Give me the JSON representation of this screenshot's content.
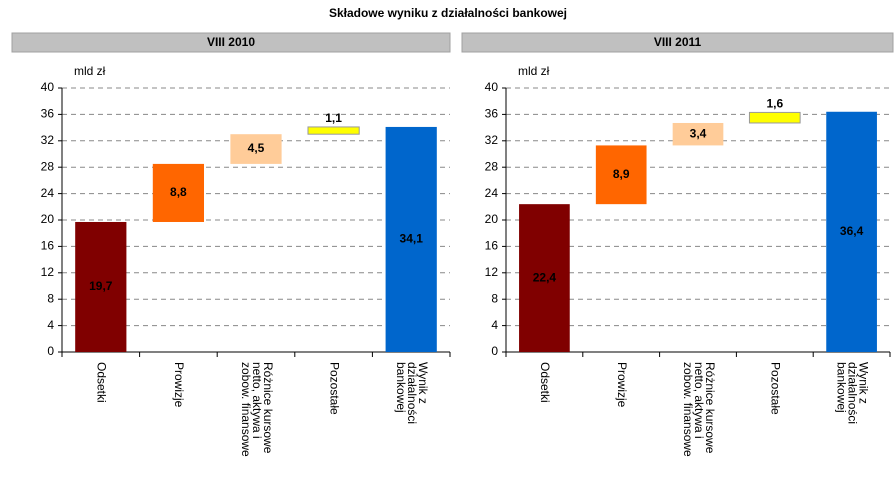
{
  "title": "Składowe wyniku z działalności bankowej",
  "chart_data": [
    {
      "type": "waterfall",
      "title": "VIII 2010",
      "ylabel": "mld zł",
      "categories": [
        "Odsetki",
        "Prowizje",
        "Różnice kursowe\nnetto, aktywa i\nzobow. finansowe",
        "Pozostałe",
        "Wynik z\ndziałalności\nbankowej"
      ],
      "values": [
        19.7,
        8.8,
        4.5,
        1.1,
        34.1
      ],
      "value_labels": [
        "19,7",
        "8,8",
        "4,5",
        "1,1",
        "34,1"
      ],
      "totals": [
        false,
        false,
        false,
        false,
        true
      ],
      "colors": [
        "#800000",
        "#ff6600",
        "#ffcc99",
        "#ffff00",
        "#0066cc"
      ],
      "ylim": [
        0,
        40
      ],
      "yticks": [
        0,
        4,
        8,
        12,
        16,
        20,
        24,
        28,
        32,
        36,
        40
      ],
      "grid": true
    },
    {
      "type": "waterfall",
      "title": "VIII 2011",
      "ylabel": "mld zł",
      "categories": [
        "Odsetki",
        "Prowizje",
        "Różnice kursowe\nnetto, aktywa i\nzobow. finansowe",
        "Pozostałe",
        "Wynik z\ndziałalności\nbankowej"
      ],
      "values": [
        22.4,
        8.9,
        3.4,
        1.6,
        36.4
      ],
      "value_labels": [
        "22,4",
        "8,9",
        "3,4",
        "1,6",
        "36,4"
      ],
      "totals": [
        false,
        false,
        false,
        false,
        true
      ],
      "colors": [
        "#800000",
        "#ff6600",
        "#ffcc99",
        "#ffff00",
        "#0066cc"
      ],
      "ylim": [
        0,
        40
      ],
      "yticks": [
        0,
        4,
        8,
        12,
        16,
        20,
        24,
        28,
        32,
        36,
        40
      ],
      "grid": true
    }
  ]
}
